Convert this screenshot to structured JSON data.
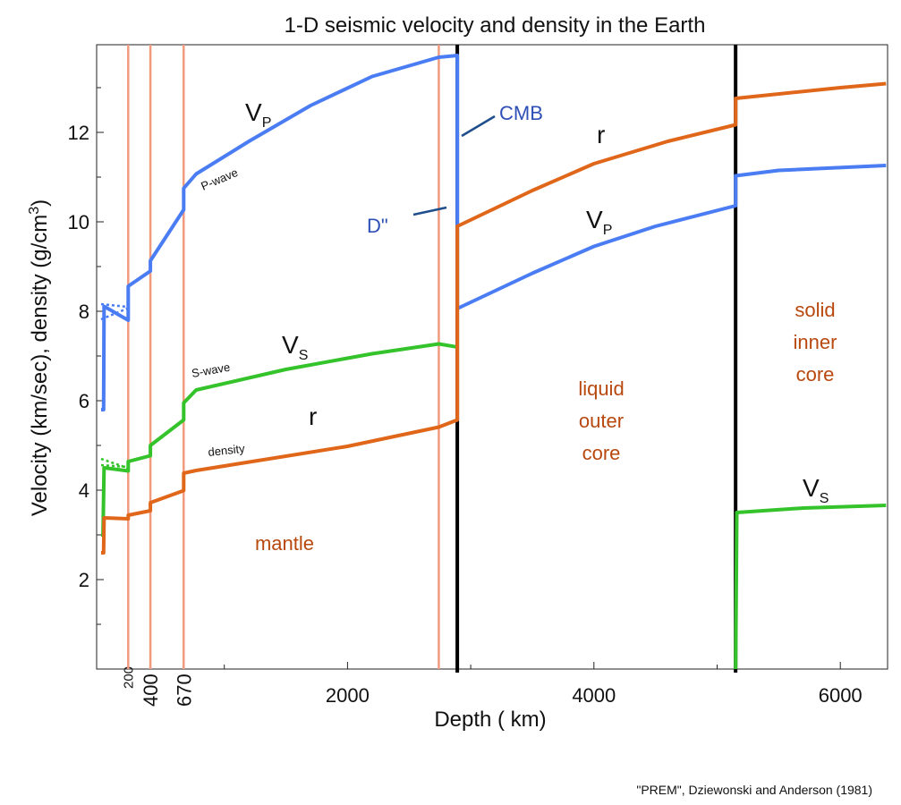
{
  "chart_data": {
    "type": "line",
    "title": "1-D seismic velocity and density in the Earth",
    "xlabel": "Depth ( km)",
    "ylabel": "Velocity (km/sec), density (g/cm3)",
    "ylabel_main": "Velocity (km/sec), density (g/cm",
    "ylabel_sup": "3",
    "ylabel_end": ")",
    "xlim": [
      0,
      6371
    ],
    "ylim": [
      0,
      14
    ],
    "x_ticks_major": [
      "2000",
      "4000",
      "6000"
    ],
    "x_ticks_boundaries": [
      "200",
      "400",
      "670"
    ],
    "y_ticks": [
      "2",
      "4",
      "6",
      "8",
      "10",
      "12"
    ],
    "boundaries": {
      "mantle_discontinuities_km": [
        220,
        400,
        670,
        2741
      ],
      "cmb_km": 2891,
      "icb_km": 5150
    },
    "series": [
      {
        "label": "V",
        "label_sub": "P",
        "note": "P-wave",
        "color": "#4a7cf3",
        "points": [
          [
            0,
            5.8
          ],
          [
            20,
            5.8
          ],
          [
            24,
            8.11
          ],
          [
            220,
            7.8
          ],
          [
            220,
            8.56
          ],
          [
            400,
            8.9
          ],
          [
            400,
            9.13
          ],
          [
            670,
            10.27
          ],
          [
            670,
            10.75
          ],
          [
            771,
            11.07
          ],
          [
            1200,
            11.8
          ],
          [
            1700,
            12.6
          ],
          [
            2200,
            13.25
          ],
          [
            2741,
            13.68
          ],
          [
            2891,
            13.72
          ],
          [
            2891,
            8.06
          ],
          [
            3500,
            8.85
          ],
          [
            4000,
            9.45
          ],
          [
            4500,
            9.9
          ],
          [
            5150,
            10.36
          ],
          [
            5150,
            11.03
          ],
          [
            5500,
            11.15
          ],
          [
            6371,
            11.26
          ]
        ]
      },
      {
        "label": "V",
        "label_sub": "S",
        "note": "S-wave",
        "color": "#34c32b",
        "points": [
          [
            0,
            3.0
          ],
          [
            15,
            3.0
          ],
          [
            24,
            4.5
          ],
          [
            220,
            4.43
          ],
          [
            220,
            4.64
          ],
          [
            400,
            4.77
          ],
          [
            400,
            5.0
          ],
          [
            670,
            5.57
          ],
          [
            670,
            5.95
          ],
          [
            771,
            6.24
          ],
          [
            1500,
            6.7
          ],
          [
            2200,
            7.05
          ],
          [
            2741,
            7.27
          ],
          [
            2891,
            7.2
          ],
          [
            5150,
            0.0
          ],
          [
            5160,
            3.5
          ],
          [
            5700,
            3.6
          ],
          [
            6371,
            3.66
          ]
        ]
      },
      {
        "label": "r",
        "note": "density",
        "color": "#e0661a",
        "points": [
          [
            0,
            2.6
          ],
          [
            20,
            2.6
          ],
          [
            24,
            3.38
          ],
          [
            220,
            3.36
          ],
          [
            220,
            3.44
          ],
          [
            400,
            3.54
          ],
          [
            400,
            3.72
          ],
          [
            670,
            3.99
          ],
          [
            670,
            4.38
          ],
          [
            771,
            4.44
          ],
          [
            2000,
            4.98
          ],
          [
            2741,
            5.41
          ],
          [
            2891,
            5.57
          ],
          [
            2891,
            9.9
          ],
          [
            3500,
            10.7
          ],
          [
            4000,
            11.3
          ],
          [
            4600,
            11.8
          ],
          [
            5150,
            12.17
          ],
          [
            5150,
            12.76
          ],
          [
            6000,
            13.0
          ],
          [
            6371,
            13.09
          ]
        ]
      }
    ],
    "annotations": {
      "cmb": "CMB",
      "d_double_prime": "D\"",
      "mantle": "mantle",
      "liquid_outer_core": [
        "liquid",
        "outer",
        "core"
      ],
      "solid_inner_core": [
        "solid",
        "inner",
        "core"
      ]
    },
    "colors": {
      "boundary_line": "#f29a7e",
      "cmb_line": "#000000",
      "region_text": "#b8480e",
      "blue_text": "#2e4fb5"
    },
    "citation": "\"PREM\",  Dziewonski and Anderson (1981)"
  }
}
